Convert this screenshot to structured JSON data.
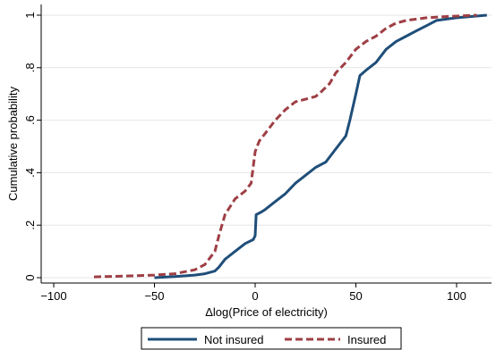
{
  "chart_data": {
    "type": "line",
    "title": "",
    "xlabel": "Δlog(Price of electricity)",
    "ylabel": "Cumulative probability",
    "xlim": [
      -100,
      120
    ],
    "ylim": [
      0,
      1
    ],
    "x_ticks": [
      -100,
      -50,
      0,
      50,
      100
    ],
    "x_tick_labels": [
      "−100",
      "−50",
      "0",
      "50",
      "100"
    ],
    "y_ticks": [
      0,
      0.2,
      0.4,
      0.6,
      0.8,
      1
    ],
    "y_tick_labels": [
      "0",
      ".2",
      ".4",
      ".6",
      ".8",
      "1"
    ],
    "grid": true,
    "legend_position": "bottom",
    "series": [
      {
        "name": "Not insured",
        "color": "#1f4e79",
        "dash": "solid",
        "points": [
          [
            -50,
            0.0
          ],
          [
            -40,
            0.004
          ],
          [
            -30,
            0.01
          ],
          [
            -25,
            0.015
          ],
          [
            -20,
            0.025
          ],
          [
            -18,
            0.04
          ],
          [
            -15,
            0.07
          ],
          [
            -10,
            0.1
          ],
          [
            -5,
            0.13
          ],
          [
            -1,
            0.145
          ],
          [
            0,
            0.16
          ],
          [
            0.5,
            0.24
          ],
          [
            3,
            0.25
          ],
          [
            5,
            0.26
          ],
          [
            10,
            0.29
          ],
          [
            15,
            0.32
          ],
          [
            20,
            0.36
          ],
          [
            25,
            0.39
          ],
          [
            30,
            0.42
          ],
          [
            35,
            0.44
          ],
          [
            40,
            0.49
          ],
          [
            45,
            0.54
          ],
          [
            47,
            0.6
          ],
          [
            50,
            0.7
          ],
          [
            52,
            0.77
          ],
          [
            55,
            0.79
          ],
          [
            60,
            0.82
          ],
          [
            65,
            0.87
          ],
          [
            70,
            0.9
          ],
          [
            75,
            0.92
          ],
          [
            80,
            0.94
          ],
          [
            85,
            0.96
          ],
          [
            90,
            0.98
          ],
          [
            100,
            0.99
          ],
          [
            115,
            1.0
          ]
        ]
      },
      {
        "name": "Insured",
        "color": "#9e3f45",
        "dash": "dash",
        "points": [
          [
            -80,
            0.003
          ],
          [
            -60,
            0.007
          ],
          [
            -50,
            0.01
          ],
          [
            -40,
            0.015
          ],
          [
            -30,
            0.03
          ],
          [
            -25,
            0.05
          ],
          [
            -20,
            0.1
          ],
          [
            -18,
            0.16
          ],
          [
            -15,
            0.24
          ],
          [
            -10,
            0.3
          ],
          [
            -5,
            0.33
          ],
          [
            -2,
            0.36
          ],
          [
            0,
            0.48
          ],
          [
            2,
            0.52
          ],
          [
            5,
            0.55
          ],
          [
            10,
            0.6
          ],
          [
            15,
            0.64
          ],
          [
            20,
            0.67
          ],
          [
            25,
            0.68
          ],
          [
            30,
            0.69
          ],
          [
            33,
            0.71
          ],
          [
            37,
            0.74
          ],
          [
            40,
            0.78
          ],
          [
            45,
            0.82
          ],
          [
            50,
            0.87
          ],
          [
            55,
            0.9
          ],
          [
            60,
            0.92
          ],
          [
            65,
            0.95
          ],
          [
            70,
            0.97
          ],
          [
            75,
            0.98
          ],
          [
            85,
            0.99
          ],
          [
            95,
            0.995
          ],
          [
            110,
            1.0
          ]
        ]
      }
    ]
  }
}
